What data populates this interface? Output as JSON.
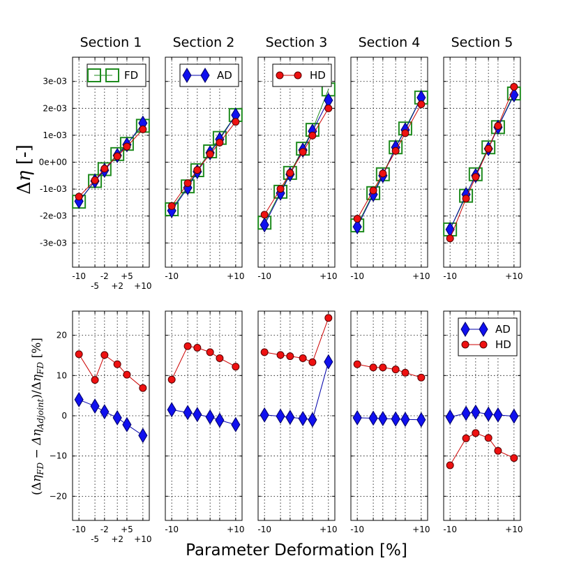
{
  "colors": {
    "fd": "#1e8b1e",
    "ad_fill": "#1010ee",
    "ad_edge": "#000066",
    "ad_line": "#0000aa",
    "hd_fill": "#ee1111",
    "hd_edge": "#550000",
    "hd_line": "#cc0000"
  },
  "figure": {
    "xlabel": "Parameter Deformation [%]",
    "top_ylabel": "Δη [-]",
    "bottom_ylabel": "(Δη_FD − Δη_Adjoint)/Δη_FD  [%]"
  },
  "chart_data": [
    {
      "type": "line",
      "row": "top",
      "title": "Section 1",
      "ylim": [
        -0.0039,
        0.0039
      ],
      "yticks": [
        -0.003,
        -0.002,
        -0.001,
        0,
        0.001,
        0.002,
        0.003
      ],
      "ytick_labels": [
        "-3e-03",
        "-2e-03",
        "-1e-03",
        "0e+00",
        "1e-03",
        "2e-03",
        "3e-03"
      ],
      "xlim": [
        -12,
        12
      ],
      "xticks": [
        -10,
        -5,
        -2,
        2,
        5,
        10
      ],
      "xtick_labels": [
        {
          "text": "-10",
          "level": 0
        },
        {
          "text": "-5",
          "level": 1
        },
        {
          "text": "-2",
          "level": 0
        },
        {
          "text": "+2",
          "level": 1
        },
        {
          "text": "+5",
          "level": 0
        },
        {
          "text": "+10",
          "level": 1
        }
      ],
      "legend": {
        "entry": "FD",
        "position": "top-right"
      },
      "series": [
        {
          "name": "FD",
          "x": [
            -10,
            -5,
            -2,
            2,
            5,
            10
          ],
          "y": [
            -0.00152,
            -0.00075,
            -0.00031,
            0.00025,
            0.00063,
            0.0013
          ]
        },
        {
          "name": "AD",
          "x": [
            -10,
            -5,
            -2,
            2,
            5,
            10
          ],
          "y": [
            -0.00145,
            -0.0007,
            -0.0003,
            0.00025,
            0.00065,
            0.00145
          ]
        },
        {
          "name": "HD",
          "x": [
            -10,
            -5,
            -2,
            2,
            5,
            10
          ],
          "y": [
            -0.00128,
            -0.00067,
            -0.00024,
            0.00022,
            0.00058,
            0.00122
          ]
        }
      ]
    },
    {
      "type": "line",
      "row": "top",
      "title": "Section 2",
      "ylim": [
        -0.0039,
        0.0039
      ],
      "yticks": [
        -0.003,
        -0.002,
        -0.001,
        0,
        0.001,
        0.002,
        0.003
      ],
      "xlim": [
        -12,
        12
      ],
      "xticks": [
        -10,
        -5,
        -2,
        2,
        5,
        10
      ],
      "xtick_labels": [
        {
          "text": "-10",
          "level": 0
        },
        {
          "text": "+10",
          "level": 0,
          "at": 10
        }
      ],
      "legend": {
        "entry": "AD",
        "position": "top-right"
      },
      "series": [
        {
          "name": "FD",
          "x": [
            -10,
            -5,
            -2,
            2,
            5,
            10
          ],
          "y": [
            -0.0018,
            -0.00095,
            -0.00035,
            0.00035,
            0.00085,
            0.0017
          ]
        },
        {
          "name": "AD",
          "x": [
            -10,
            -5,
            -2,
            2,
            5,
            10
          ],
          "y": [
            -0.0018,
            -0.00095,
            -0.00035,
            0.00035,
            0.00085,
            0.00175
          ]
        },
        {
          "name": "HD",
          "x": [
            -10,
            -5,
            -2,
            2,
            5,
            10
          ],
          "y": [
            -0.00163,
            -0.00078,
            -0.00029,
            0.0003,
            0.00073,
            0.0015
          ]
        }
      ]
    },
    {
      "type": "line",
      "row": "top",
      "title": "Section 3",
      "ylim": [
        -0.0039,
        0.0039
      ],
      "yticks": [
        -0.003,
        -0.002,
        -0.001,
        0,
        0.001,
        0.002,
        0.003
      ],
      "xlim": [
        -12,
        12
      ],
      "xticks": [
        -10,
        -5,
        -2,
        2,
        5,
        10
      ],
      "xtick_labels": [
        {
          "text": "-10",
          "level": 0
        },
        {
          "text": "+10",
          "level": 0,
          "at": 10
        }
      ],
      "legend": {
        "entry": "HD",
        "position": "top-right"
      },
      "series": [
        {
          "name": "FD",
          "x": [
            -10,
            -5,
            -2,
            2,
            5,
            10
          ],
          "y": [
            -0.0023,
            -0.00115,
            -0.00045,
            0.00045,
            0.00115,
            0.00265
          ]
        },
        {
          "name": "AD",
          "x": [
            -10,
            -5,
            -2,
            2,
            5,
            10
          ],
          "y": [
            -0.00233,
            -0.00115,
            -0.00045,
            0.00045,
            0.00115,
            0.0023
          ]
        },
        {
          "name": "HD",
          "x": [
            -10,
            -5,
            -2,
            2,
            5,
            10
          ],
          "y": [
            -0.00195,
            -0.00099,
            -0.0004,
            0.00038,
            0.00099,
            0.002
          ]
        }
      ]
    },
    {
      "type": "line",
      "row": "top",
      "title": "Section 4",
      "ylim": [
        -0.0039,
        0.0039
      ],
      "yticks": [
        -0.003,
        -0.002,
        -0.001,
        0,
        0.001,
        0.002,
        0.003
      ],
      "xlim": [
        -12,
        12
      ],
      "xticks": [
        -10,
        -5,
        -2,
        2,
        5,
        10
      ],
      "xtick_labels": [
        {
          "text": "-10",
          "level": 0
        },
        {
          "text": "+10",
          "level": 0,
          "at": 10
        }
      ],
      "series": [
        {
          "name": "FD",
          "x": [
            -10,
            -5,
            -2,
            2,
            5,
            10
          ],
          "y": [
            -0.0024,
            -0.0012,
            -0.0005,
            0.0005,
            0.0012,
            0.00235
          ]
        },
        {
          "name": "AD",
          "x": [
            -10,
            -5,
            -2,
            2,
            5,
            10
          ],
          "y": [
            -0.0024,
            -0.0012,
            -0.0005,
            0.00055,
            0.0012,
            0.0024
          ]
        },
        {
          "name": "HD",
          "x": [
            -10,
            -5,
            -2,
            2,
            5,
            10
          ],
          "y": [
            -0.0021,
            -0.00105,
            -0.00042,
            0.00042,
            0.00108,
            0.00215
          ]
        }
      ]
    },
    {
      "type": "line",
      "row": "top",
      "title": "Section 5",
      "ylim": [
        -0.0039,
        0.0039
      ],
      "yticks": [
        -0.003,
        -0.002,
        -0.001,
        0,
        0.001,
        0.002,
        0.003
      ],
      "xlim": [
        -12,
        12
      ],
      "xticks": [
        -10,
        -5,
        -2,
        2,
        5,
        10
      ],
      "xtick_labels": [
        {
          "text": "-10",
          "level": 0
        },
        {
          "text": "+10",
          "level": 0,
          "at": 10
        }
      ],
      "series": [
        {
          "name": "FD",
          "x": [
            -10,
            -5,
            -2,
            2,
            5,
            10
          ],
          "y": [
            -0.00255,
            -0.0013,
            -0.0005,
            0.0005,
            0.00125,
            0.0025
          ]
        },
        {
          "name": "AD",
          "x": [
            -10,
            -5,
            -2,
            2,
            5,
            10
          ],
          "y": [
            -0.0025,
            -0.0012,
            -0.0005,
            0.0005,
            0.0013,
            0.0025
          ]
        },
        {
          "name": "HD",
          "x": [
            -10,
            -5,
            -2,
            2,
            5,
            10
          ],
          "y": [
            -0.00283,
            -0.00135,
            -0.00055,
            0.0005,
            0.00135,
            0.0028
          ]
        }
      ]
    },
    {
      "type": "line",
      "row": "bottom",
      "ylim": [
        -26,
        26
      ],
      "yticks": [
        -20,
        -10,
        0,
        10,
        20
      ],
      "ytick_labels": [
        "−20",
        "−10",
        "0",
        "10",
        "20"
      ],
      "xlim": [
        -12,
        12
      ],
      "xticks": [
        -10,
        -5,
        -2,
        2,
        5,
        10
      ],
      "xtick_labels": [
        {
          "text": "-10",
          "level": 0
        },
        {
          "text": "-5",
          "level": 1
        },
        {
          "text": "-2",
          "level": 0
        },
        {
          "text": "+2",
          "level": 1
        },
        {
          "text": "+5",
          "level": 0
        },
        {
          "text": "+10",
          "level": 1
        }
      ],
      "series": [
        {
          "name": "AD",
          "x": [
            -10,
            -5,
            -2,
            2,
            5,
            10
          ],
          "y": [
            4.0,
            2.4,
            1.0,
            -0.5,
            -2.2,
            -4.9
          ]
        },
        {
          "name": "HD",
          "x": [
            -10,
            -5,
            -2,
            2,
            5,
            10
          ],
          "y": [
            15.3,
            8.9,
            15.1,
            12.8,
            10.2,
            6.9
          ]
        }
      ]
    },
    {
      "type": "line",
      "row": "bottom",
      "ylim": [
        -26,
        26
      ],
      "yticks": [
        -20,
        -10,
        0,
        10,
        20
      ],
      "xlim": [
        -12,
        12
      ],
      "xticks": [
        -10,
        -5,
        -2,
        2,
        5,
        10
      ],
      "xtick_labels": [
        {
          "text": "-10",
          "level": 0
        },
        {
          "text": "+10",
          "level": 0,
          "at": 10
        }
      ],
      "series": [
        {
          "name": "AD",
          "x": [
            -10,
            -5,
            -2,
            2,
            5,
            10
          ],
          "y": [
            1.5,
            0.8,
            0.3,
            -0.3,
            -1.1,
            -2.2
          ]
        },
        {
          "name": "HD",
          "x": [
            -10,
            -5,
            -2,
            2,
            5,
            10
          ],
          "y": [
            9.0,
            17.3,
            16.9,
            15.8,
            14.3,
            12.2
          ]
        }
      ]
    },
    {
      "type": "line",
      "row": "bottom",
      "ylim": [
        -26,
        26
      ],
      "yticks": [
        -20,
        -10,
        0,
        10,
        20
      ],
      "xlim": [
        -12,
        12
      ],
      "xticks": [
        -10,
        -5,
        -2,
        2,
        5,
        10
      ],
      "xtick_labels": [
        {
          "text": "-10",
          "level": 0
        },
        {
          "text": "+10",
          "level": 0,
          "at": 10
        }
      ],
      "series": [
        {
          "name": "AD",
          "x": [
            -10,
            -5,
            -2,
            2,
            5,
            10
          ],
          "y": [
            0.2,
            -0.1,
            -0.4,
            -0.7,
            -1.0,
            13.4
          ]
        },
        {
          "name": "HD",
          "x": [
            -10,
            -5,
            -2,
            2,
            5,
            10
          ],
          "y": [
            15.8,
            15.1,
            14.8,
            14.3,
            13.3,
            24.3
          ]
        }
      ]
    },
    {
      "type": "line",
      "row": "bottom",
      "ylim": [
        -26,
        26
      ],
      "yticks": [
        -20,
        -10,
        0,
        10,
        20
      ],
      "xlim": [
        -12,
        12
      ],
      "xticks": [
        -10,
        -5,
        -2,
        2,
        5,
        10
      ],
      "xtick_labels": [
        {
          "text": "-10",
          "level": 0
        },
        {
          "text": "+10",
          "level": 0,
          "at": 10
        }
      ],
      "series": [
        {
          "name": "AD",
          "x": [
            -10,
            -5,
            -2,
            2,
            5,
            10
          ],
          "y": [
            -0.5,
            -0.6,
            -0.7,
            -0.8,
            -0.9,
            -1.0
          ]
        },
        {
          "name": "HD",
          "x": [
            -10,
            -5,
            -2,
            2,
            5,
            10
          ],
          "y": [
            12.8,
            12.0,
            12.0,
            11.5,
            10.7,
            9.5
          ]
        }
      ]
    },
    {
      "type": "line",
      "row": "bottom",
      "ylim": [
        -26,
        26
      ],
      "yticks": [
        -20,
        -10,
        0,
        10,
        20
      ],
      "xlim": [
        -12,
        12
      ],
      "xticks": [
        -10,
        -5,
        -2,
        2,
        5,
        10
      ],
      "xtick_labels": [
        {
          "text": "-10",
          "level": 0
        },
        {
          "text": "+10",
          "level": 0,
          "at": 10
        }
      ],
      "legend": {
        "entries": [
          "AD",
          "HD"
        ],
        "position": "top-right"
      },
      "series": [
        {
          "name": "AD",
          "x": [
            -10,
            -5,
            -2,
            2,
            5,
            10
          ],
          "y": [
            -0.3,
            0.6,
            0.9,
            0.4,
            0.2,
            -0.1
          ]
        },
        {
          "name": "HD",
          "x": [
            -10,
            -5,
            -2,
            2,
            5,
            10
          ],
          "y": [
            -12.3,
            -5.6,
            -4.3,
            -5.5,
            -8.7,
            -10.5
          ]
        }
      ]
    }
  ]
}
